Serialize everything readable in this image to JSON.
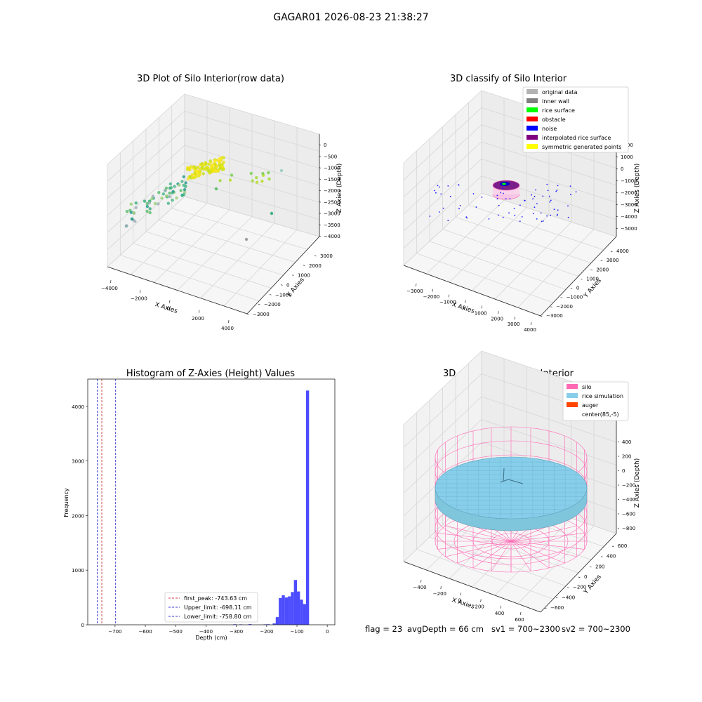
{
  "figure": {
    "suptitle": "GAGAR01 2026-08-23 21:38:27"
  },
  "status": {
    "flag": "flag = 23",
    "avg_depth": "avgDepth = 66 cm",
    "sv1": "sv1 = 700~2300",
    "sv2": "sv2 = 700~2300"
  },
  "chart_data": [
    {
      "type": "scatter",
      "title": "3D Plot of Silo Interior(row data)",
      "xlabel": "X Axies",
      "ylabel": "Y Axies",
      "zlabel": "Z Axies (Depth)",
      "x_ticks": [
        "−4000",
        "−2000",
        "0",
        "2000",
        "4000"
      ],
      "y_ticks": [
        "−3000",
        "−2000",
        "−1000",
        "0",
        "1000",
        "2000",
        "3000"
      ],
      "z_ticks": [
        "0",
        "−500",
        "−1000",
        "−1500",
        "−2000",
        "−2500",
        "−3000",
        "−3500",
        "−4000"
      ],
      "colormap": "viridis",
      "point_clusters": [
        {
          "x": [
            -3600,
            -600
          ],
          "y": [
            -400,
            400
          ],
          "z": [
            -2800,
            -1200
          ],
          "approx_count": 60
        },
        {
          "x": [
            -300,
            1400
          ],
          "y": [
            -600,
            700
          ],
          "z": [
            -1600,
            -800
          ],
          "approx_count": 110
        },
        {
          "x": [
            1500,
            3000
          ],
          "y": [
            -500,
            2200
          ],
          "z": [
            -3500,
            -600
          ],
          "approx_count": 12
        }
      ]
    },
    {
      "type": "scatter",
      "title": "3D classify of Silo Interior",
      "xlabel": "X Axies",
      "ylabel": "Y Axies",
      "zlabel": "Z Axies (Depth)",
      "x_ticks": [
        "−3000",
        "−2000",
        "−1000",
        "0",
        "1000",
        "2000",
        "3000",
        "4000"
      ],
      "y_ticks": [
        "−3000",
        "−2000",
        "−1000",
        "0",
        "1000",
        "2000",
        "3000",
        "4000"
      ],
      "z_ticks": [
        "2000",
        "1000",
        "0",
        "−1000",
        "−2000",
        "−3000",
        "−4000",
        "−5000"
      ],
      "legend_position": "top-right",
      "legend": [
        {
          "label": "original data",
          "color": "#b3b3b3"
        },
        {
          "label": "inner wall",
          "color": "#808080"
        },
        {
          "label": "rice surface",
          "color": "#00ff00"
        },
        {
          "label": "obstacle",
          "color": "#ff0000"
        },
        {
          "label": "noise",
          "color": "#0000ff"
        },
        {
          "label": "interpolated rice surface",
          "color": "#800080"
        },
        {
          "label": "symmetric generated points",
          "color": "#ffff00"
        }
      ]
    },
    {
      "type": "bar",
      "title": "Histogram of Z-Axies (Height) Values",
      "xlabel": "Depth (cm)",
      "ylabel": "Frequency",
      "xlim": [
        -790,
        25
      ],
      "ylim": [
        0,
        4500
      ],
      "x_ticks": [
        "−700",
        "−600",
        "−500",
        "−400",
        "−300",
        "−200",
        "−100",
        "0"
      ],
      "y_ticks": [
        "0",
        "1000",
        "2000",
        "3000",
        "4000"
      ],
      "bar_color": "#4d4dff",
      "bin_width": 10,
      "bins": [
        {
          "x": -310,
          "value": 10
        },
        {
          "x": -290,
          "value": 8
        },
        {
          "x": -260,
          "value": 12
        },
        {
          "x": -210,
          "value": 8
        },
        {
          "x": -200,
          "value": 10
        },
        {
          "x": -180,
          "value": 25
        },
        {
          "x": -170,
          "value": 140
        },
        {
          "x": -160,
          "value": 490
        },
        {
          "x": -150,
          "value": 540
        },
        {
          "x": -140,
          "value": 500
        },
        {
          "x": -130,
          "value": 520
        },
        {
          "x": -120,
          "value": 600
        },
        {
          "x": -110,
          "value": 820
        },
        {
          "x": -100,
          "value": 610
        },
        {
          "x": -90,
          "value": 460
        },
        {
          "x": -80,
          "value": 380
        },
        {
          "x": -70,
          "value": 4290
        }
      ],
      "vlines": [
        {
          "label": "first_peak: -743.63 cm",
          "value": -743.63,
          "color": "#cc3344"
        },
        {
          "label": "Upper_limit: -698.11 cm",
          "value": -698.11,
          "color": "#3333cc"
        },
        {
          "label": "Lower_limit: -758.80 cm",
          "value": -758.8,
          "color": "#3333cc"
        }
      ],
      "legend_position": "lower-center"
    },
    {
      "type": "area",
      "title": "3D simulation of Silo Interior",
      "xlabel": "X Axies",
      "ylabel": "Y Axies",
      "zlabel": "Z Axies (Depth)",
      "x_ticks": [
        "−400",
        "−200",
        "0",
        "200",
        "400",
        "600"
      ],
      "y_ticks": [
        "−600",
        "−400",
        "−200",
        "0",
        "200",
        "400",
        "600"
      ],
      "z_ticks": [
        "400",
        "200",
        "0",
        "−200",
        "−400",
        "−600",
        "−800"
      ],
      "legend_position": "top-right",
      "legend": [
        {
          "label": "silo",
          "color": "#ff69b4"
        },
        {
          "label": "rice simulation",
          "color": "#87ceeb"
        },
        {
          "label": "auger",
          "color": "#ff4500"
        },
        {
          "label": "center(85,-5)",
          "color": "#ffffff"
        }
      ]
    }
  ]
}
